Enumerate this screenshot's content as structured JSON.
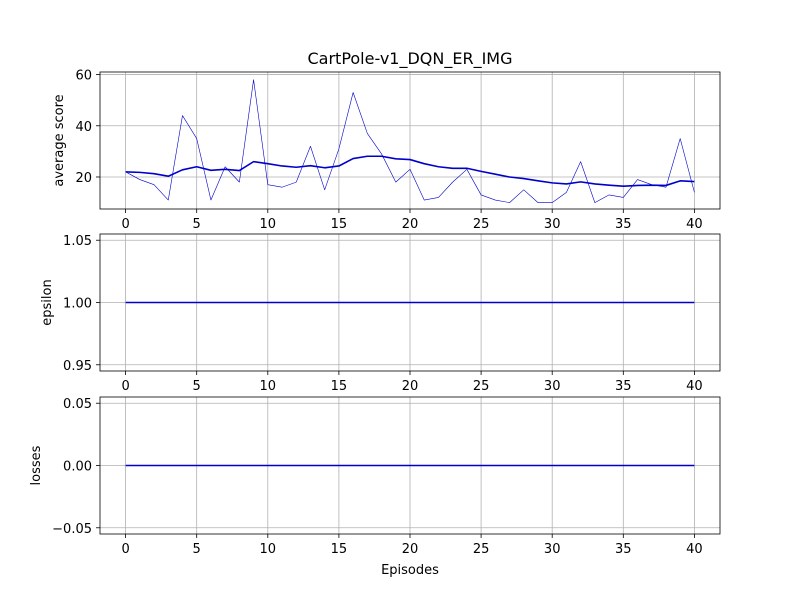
{
  "chart_data": [
    {
      "type": "line",
      "title": "CartPole-v1_DQN_ER_IMG",
      "xlabel": "",
      "ylabel": "average score",
      "x": [
        0,
        1,
        2,
        3,
        4,
        5,
        6,
        7,
        8,
        9,
        10,
        11,
        12,
        13,
        14,
        15,
        16,
        17,
        18,
        19,
        20,
        21,
        22,
        23,
        24,
        25,
        26,
        27,
        28,
        29,
        30,
        31,
        32,
        33,
        34,
        35,
        36,
        37,
        38,
        39,
        40
      ],
      "xlim": [
        -1.8,
        41.8
      ],
      "ylim": [
        7.5,
        61
      ],
      "xticks": [
        0,
        5,
        10,
        15,
        20,
        25,
        30,
        35,
        40
      ],
      "yticks": [
        20,
        40,
        60
      ],
      "grid": true,
      "series": [
        {
          "style": "raw",
          "color": "#0000cc",
          "values": [
            22,
            19,
            17,
            11,
            44,
            35,
            11,
            24,
            18,
            58,
            17,
            16,
            18,
            32,
            15,
            31,
            53,
            37,
            29,
            18,
            23,
            11,
            12,
            18,
            23,
            13,
            11,
            10,
            15,
            10,
            10,
            14,
            26,
            10,
            13,
            12,
            19,
            17,
            16,
            35,
            14
          ]
        },
        {
          "style": "average",
          "color": "#0000cc",
          "values": [
            22,
            21.8,
            21.3,
            20.3,
            22.8,
            24,
            22.6,
            23,
            22.5,
            26,
            25.2,
            24.3,
            23.8,
            24.4,
            23.6,
            24.3,
            27.2,
            28.1,
            28.1,
            27.1,
            26.8,
            25.2,
            24,
            23.4,
            23.4,
            22.2,
            21.1,
            20,
            19.4,
            18.5,
            17.7,
            17.3,
            18.1,
            17.3,
            16.8,
            16.4,
            16.7,
            16.8,
            16.7,
            18.5,
            18.2
          ]
        }
      ]
    },
    {
      "type": "line",
      "xlabel": "",
      "ylabel": "epsilon",
      "x": [
        0,
        1,
        2,
        3,
        4,
        5,
        6,
        7,
        8,
        9,
        10,
        11,
        12,
        13,
        14,
        15,
        16,
        17,
        18,
        19,
        20,
        21,
        22,
        23,
        24,
        25,
        26,
        27,
        28,
        29,
        30,
        31,
        32,
        33,
        34,
        35,
        36,
        37,
        38,
        39,
        40
      ],
      "xlim": [
        -1.8,
        41.8
      ],
      "ylim": [
        0.945,
        1.055
      ],
      "xticks": [
        0,
        5,
        10,
        15,
        20,
        25,
        30,
        35,
        40
      ],
      "yticks": [
        0.95,
        1.0,
        1.05
      ],
      "ytick_labels": [
        "0.95",
        "1.00",
        "1.05"
      ],
      "grid": true,
      "series": [
        {
          "color": "#0000cc",
          "values": [
            1,
            1,
            1,
            1,
            1,
            1,
            1,
            1,
            1,
            1,
            1,
            1,
            1,
            1,
            1,
            1,
            1,
            1,
            1,
            1,
            1,
            1,
            1,
            1,
            1,
            1,
            1,
            1,
            1,
            1,
            1,
            1,
            1,
            1,
            1,
            1,
            1,
            1,
            1,
            1,
            1
          ]
        }
      ]
    },
    {
      "type": "line",
      "xlabel": "Episodes",
      "ylabel": "losses",
      "x": [
        0,
        1,
        2,
        3,
        4,
        5,
        6,
        7,
        8,
        9,
        10,
        11,
        12,
        13,
        14,
        15,
        16,
        17,
        18,
        19,
        20,
        21,
        22,
        23,
        24,
        25,
        26,
        27,
        28,
        29,
        30,
        31,
        32,
        33,
        34,
        35,
        36,
        37,
        38,
        39,
        40
      ],
      "xlim": [
        -1.8,
        41.8
      ],
      "ylim": [
        -0.055,
        0.055
      ],
      "xticks": [
        0,
        5,
        10,
        15,
        20,
        25,
        30,
        35,
        40
      ],
      "yticks": [
        -0.05,
        0.0,
        0.05
      ],
      "ytick_labels": [
        "−0.05",
        "0.00",
        "0.05"
      ],
      "grid": true,
      "series": [
        {
          "color": "#0000cc",
          "values": [
            0,
            0,
            0,
            0,
            0,
            0,
            0,
            0,
            0,
            0,
            0,
            0,
            0,
            0,
            0,
            0,
            0,
            0,
            0,
            0,
            0,
            0,
            0,
            0,
            0,
            0,
            0,
            0,
            0,
            0,
            0,
            0,
            0,
            0,
            0,
            0,
            0,
            0,
            0,
            0,
            0
          ]
        }
      ]
    }
  ]
}
